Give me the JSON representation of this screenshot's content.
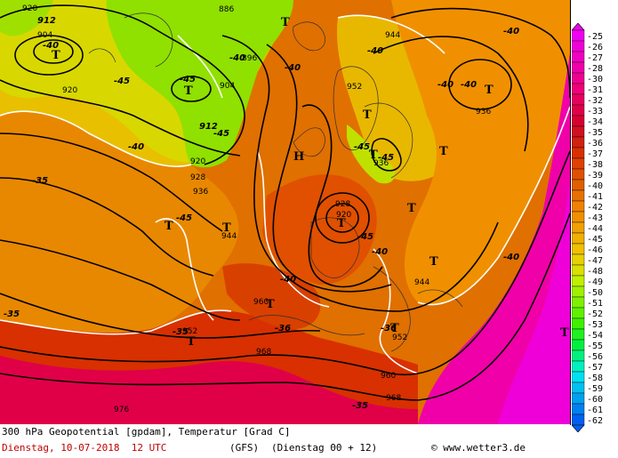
{
  "footer": {
    "title": "300 hPa Geopotential [gpdam], Temperatur [Grad C]",
    "date": "Dienstag, 10-07-2018  12 UTC",
    "model": "(GFS)",
    "run": "(Dienstag 00 + 12)",
    "copyright": "© www.wetter3.de"
  },
  "legend": {
    "values": [
      "-25",
      "-26",
      "-27",
      "-28",
      "-30",
      "-31",
      "-32",
      "-33",
      "-34",
      "-35",
      "-36",
      "-37",
      "-38",
      "-39",
      "-40",
      "-41",
      "-42",
      "-43",
      "-44",
      "-45",
      "-46",
      "-47",
      "-48",
      "-49",
      "-50",
      "-51",
      "-52",
      "-53",
      "-54",
      "-55",
      "-56",
      "-57",
      "-58",
      "-59",
      "-60",
      "-61",
      "-62"
    ],
    "colors": [
      "#f000f0",
      "#f000d8",
      "#f000c0",
      "#f000a8",
      "#f00090",
      "#f00078",
      "#e80060",
      "#e00048",
      "#d80030",
      "#d01020",
      "#d02010",
      "#d83000",
      "#e04000",
      "#e05000",
      "#e06000",
      "#e87000",
      "#f08000",
      "#f09000",
      "#f0a000",
      "#f0b000",
      "#f0c000",
      "#e8d000",
      "#d8e000",
      "#c0f000",
      "#a0f000",
      "#80f000",
      "#60f000",
      "#40f000",
      "#20f020",
      "#00f040",
      "#00f080",
      "#00f0c0",
      "#00e0f0",
      "#00c0f0",
      "#00a0f0",
      "#0080f0",
      "#0060f0"
    ]
  },
  "map_labels": {
    "geopotential": [
      "920",
      "912",
      "904",
      "920",
      "886",
      "896",
      "904",
      "912",
      "920",
      "928",
      "936",
      "944",
      "952",
      "944",
      "936",
      "936",
      "928",
      "920",
      "944",
      "952",
      "960",
      "968",
      "952",
      "960",
      "968",
      "976"
    ],
    "temperature": [
      "-40",
      "-45",
      "-40",
      "-40",
      "-45",
      "-40",
      "-40",
      "-40",
      "-40",
      "-45",
      "-45",
      "-45",
      "-35",
      "-40",
      "-45",
      "-40",
      "-40",
      "-45",
      "-35",
      "-36",
      "-35",
      "-35",
      "-36",
      "-40"
    ],
    "pressure_centers": [
      "T",
      "T",
      "T",
      "T",
      "T",
      "H",
      "T",
      "T",
      "T",
      "T",
      "T",
      "T",
      "T",
      "T",
      "T",
      "T",
      "T"
    ]
  }
}
